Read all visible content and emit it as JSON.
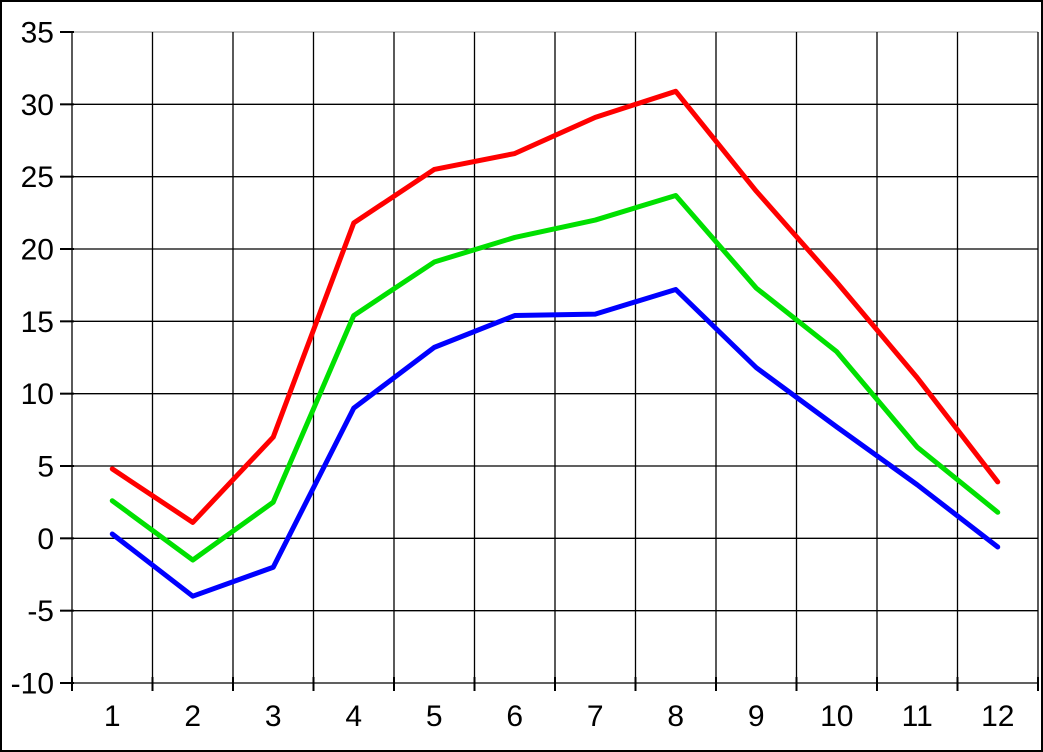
{
  "chart_data": {
    "type": "line",
    "title": "",
    "xlabel": "",
    "ylabel": "",
    "categories": [
      "1",
      "2",
      "3",
      "4",
      "5",
      "6",
      "7",
      "8",
      "9",
      "10",
      "11",
      "12"
    ],
    "series": [
      {
        "name": "red",
        "color": "#ff0000",
        "values": [
          4.8,
          1.1,
          7.0,
          21.8,
          25.5,
          26.6,
          29.1,
          30.9,
          24.0,
          17.7,
          11.1,
          3.9
        ]
      },
      {
        "name": "green",
        "color": "#00e000",
        "values": [
          2.6,
          -1.5,
          2.5,
          15.4,
          19.1,
          20.8,
          22.0,
          23.7,
          17.3,
          12.9,
          6.3,
          1.8
        ]
      },
      {
        "name": "blue",
        "color": "#0000ff",
        "values": [
          0.3,
          -4.0,
          -2.0,
          9.0,
          13.2,
          15.4,
          15.5,
          17.2,
          11.8,
          7.7,
          3.7,
          -0.6
        ]
      }
    ],
    "ylim": [
      -10,
      35
    ],
    "ytick_step": 5,
    "y_tick_labels": [
      "35",
      "30",
      "25",
      "20",
      "15",
      "10",
      "5",
      "0",
      "-5",
      "-10"
    ],
    "x_tick_labels": [
      "1",
      "2",
      "3",
      "4",
      "5",
      "6",
      "7",
      "8",
      "9",
      "10",
      "11",
      "12"
    ],
    "grid": true,
    "legend": "none",
    "colors": {
      "grid": "#000000",
      "top_border_line": "#a6a6a6",
      "tick_text": "#000000",
      "background": "#ffffff",
      "frame_border": "#000000"
    }
  }
}
